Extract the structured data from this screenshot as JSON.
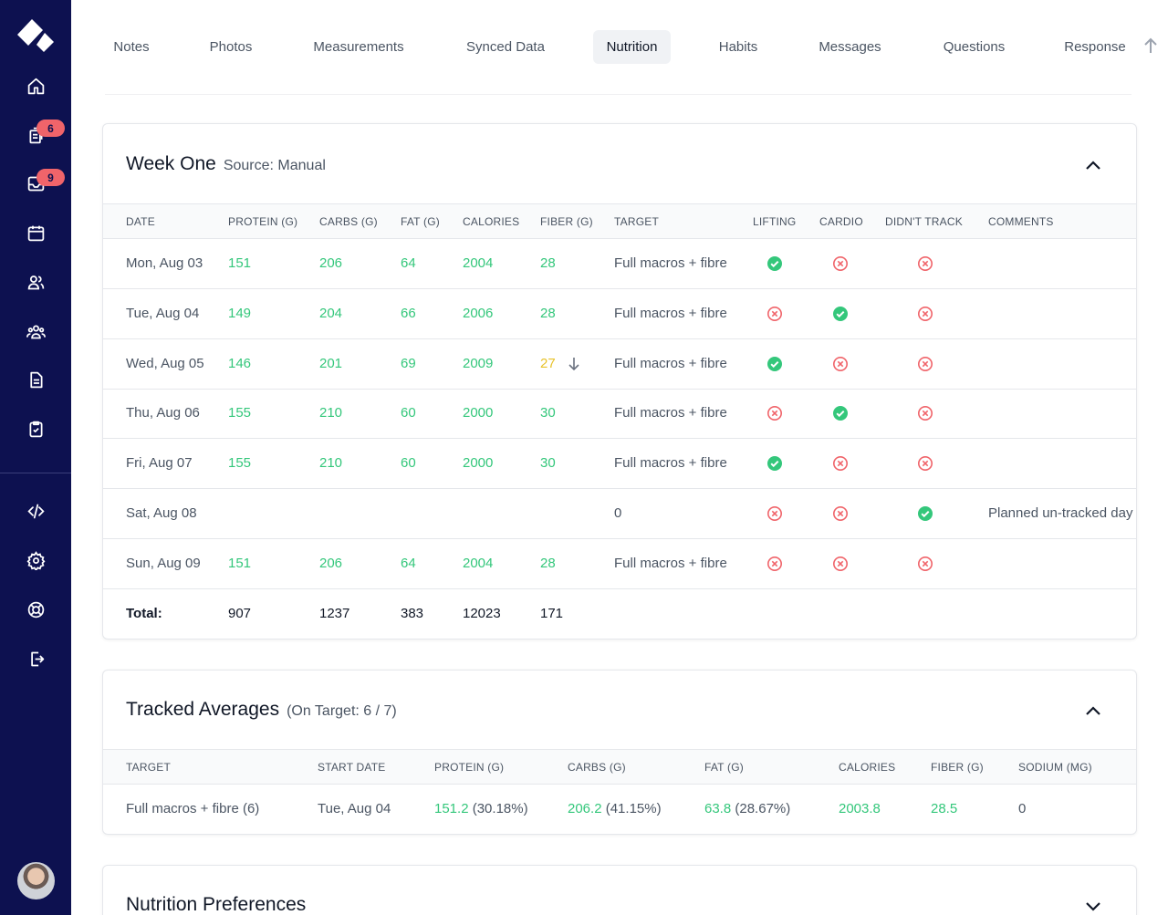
{
  "sidebar": {
    "badges": {
      "forms": "6",
      "inbox": "9"
    }
  },
  "tabs": [
    "Notes",
    "Photos",
    "Measurements",
    "Synced Data",
    "Nutrition",
    "Habits",
    "Messages",
    "Questions",
    "Response"
  ],
  "active_tab": "Nutrition",
  "week": {
    "title": "Week One",
    "source": "Source: Manual",
    "headers": [
      "DATE",
      "PROTEIN (G)",
      "CARBS (G)",
      "FAT (G)",
      "CALORIES",
      "FIBER (G)",
      "TARGET",
      "LIFTING",
      "CARDIO",
      "DIDN'T TRACK",
      "COMMENTS"
    ],
    "rows": [
      {
        "date": "Mon, Aug 03",
        "protein": "151",
        "carbs": "206",
        "fat": "64",
        "calories": "2004",
        "fiber": "28",
        "target": "Full macros + fibre",
        "lifting": true,
        "cardio": false,
        "didnt_track": false,
        "comment": ""
      },
      {
        "date": "Tue, Aug 04",
        "protein": "149",
        "carbs": "204",
        "fat": "66",
        "calories": "2006",
        "fiber": "28",
        "target": "Full macros + fibre",
        "lifting": false,
        "cardio": true,
        "didnt_track": false,
        "comment": ""
      },
      {
        "date": "Wed, Aug 05",
        "protein": "146",
        "carbs": "201",
        "fat": "69",
        "calories": "2009",
        "fiber": "27",
        "fiber_status": "below",
        "target": "Full macros + fibre",
        "lifting": true,
        "cardio": false,
        "didnt_track": false,
        "comment": ""
      },
      {
        "date": "Thu, Aug 06",
        "protein": "155",
        "carbs": "210",
        "fat": "60",
        "calories": "2000",
        "fiber": "30",
        "target": "Full macros + fibre",
        "lifting": false,
        "cardio": true,
        "didnt_track": false,
        "comment": ""
      },
      {
        "date": "Fri, Aug 07",
        "protein": "155",
        "carbs": "210",
        "fat": "60",
        "calories": "2000",
        "fiber": "30",
        "target": "Full macros + fibre",
        "lifting": true,
        "cardio": false,
        "didnt_track": false,
        "comment": ""
      },
      {
        "date": "Sat, Aug 08",
        "protein": "",
        "carbs": "",
        "fat": "",
        "calories": "",
        "fiber": "",
        "target": "0",
        "lifting": false,
        "cardio": false,
        "didnt_track": true,
        "comment": "Planned un-tracked day"
      },
      {
        "date": "Sun, Aug 09",
        "protein": "151",
        "carbs": "206",
        "fat": "64",
        "calories": "2004",
        "fiber": "28",
        "target": "Full macros + fibre",
        "lifting": false,
        "cardio": false,
        "didnt_track": false,
        "comment": ""
      }
    ],
    "total": {
      "label": "Total:",
      "protein": "907",
      "carbs": "1237",
      "fat": "383",
      "calories": "12023",
      "fiber": "171"
    }
  },
  "averages": {
    "title": "Tracked Averages",
    "subtitle": "(On Target: 6 / 7)",
    "headers": [
      "TARGET",
      "START DATE",
      "PROTEIN (G)",
      "CARBS (G)",
      "FAT (G)",
      "CALORIES",
      "FIBER (G)",
      "SODIUM (MG)"
    ],
    "row": {
      "target": "Full macros + fibre (6)",
      "start_date": "Tue, Aug 04",
      "protein": "151.2",
      "protein_pct": "(30.18%)",
      "carbs": "206.2",
      "carbs_pct": "(41.15%)",
      "fat": "63.8",
      "fat_pct": "(28.67%)",
      "calories": "2003.8",
      "fiber": "28.5",
      "sodium": "0"
    }
  },
  "preferences": {
    "title": "Nutrition Preferences"
  },
  "colors": {
    "sidebar": "#0d1150",
    "good": "#34c77b",
    "warn": "#e8c22a",
    "bad": "#f0646a"
  }
}
